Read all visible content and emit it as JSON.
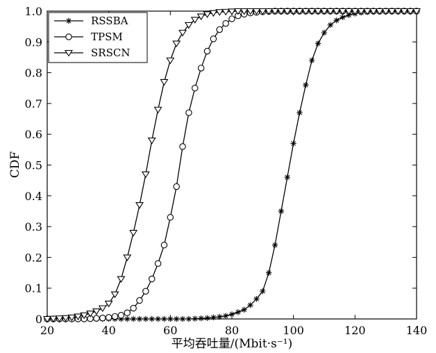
{
  "chart_data": {
    "type": "line",
    "title": "",
    "xlabel": "平均吞吐量/(Mbit·s⁻¹)",
    "ylabel": "CDF",
    "xlim": [
      20,
      140
    ],
    "ylim": [
      0,
      1.0
    ],
    "xticks": [
      "20",
      "40",
      "60",
      "80",
      "100",
      "120",
      "140"
    ],
    "yticks": [
      "0",
      "0.1",
      "0.2",
      "0.3",
      "0.4",
      "0.5",
      "0.6",
      "0.7",
      "0.8",
      "0.9",
      "1.0"
    ],
    "grid": false,
    "legend": "top-left",
    "x": [
      20,
      22,
      24,
      26,
      28,
      30,
      32,
      34,
      36,
      38,
      40,
      42,
      44,
      46,
      48,
      50,
      52,
      54,
      56,
      58,
      60,
      62,
      64,
      66,
      68,
      70,
      72,
      74,
      76,
      78,
      80,
      82,
      84,
      86,
      88,
      90,
      92,
      94,
      96,
      98,
      100,
      102,
      104,
      106,
      108,
      110,
      112,
      114,
      116,
      118,
      120,
      122,
      124,
      126,
      128,
      130,
      132,
      134,
      136,
      138,
      140
    ],
    "series": [
      {
        "name": "RSSBA",
        "marker": "asterisk",
        "values": [
          0,
          0,
          0,
          0,
          0,
          0,
          0,
          0,
          0,
          0,
          0,
          0,
          0,
          0,
          0,
          0,
          0,
          0,
          0,
          0,
          0,
          0,
          0,
          0,
          0.001,
          0.002,
          0.003,
          0.005,
          0.007,
          0.01,
          0.015,
          0.022,
          0.03,
          0.045,
          0.065,
          0.09,
          0.15,
          0.24,
          0.35,
          0.46,
          0.57,
          0.67,
          0.76,
          0.84,
          0.895,
          0.93,
          0.955,
          0.97,
          0.98,
          0.987,
          0.992,
          0.995,
          0.997,
          0.998,
          0.999,
          0.999,
          1.0,
          1.0,
          1.0,
          1.0,
          1.0
        ]
      },
      {
        "name": "TPSM",
        "marker": "circle",
        "values": [
          0,
          0,
          0,
          0,
          0,
          0,
          0,
          0.001,
          0.002,
          0.003,
          0.005,
          0.008,
          0.012,
          0.02,
          0.035,
          0.06,
          0.09,
          0.13,
          0.18,
          0.24,
          0.33,
          0.43,
          0.56,
          0.67,
          0.75,
          0.815,
          0.87,
          0.91,
          0.94,
          0.96,
          0.975,
          0.985,
          0.99,
          0.994,
          0.996,
          0.998,
          0.999,
          1.0,
          1.0,
          1.0,
          1.0,
          1.0,
          1.0,
          1.0,
          1.0,
          1.0,
          1.0,
          1.0,
          1.0,
          1.0,
          1.0,
          1.0,
          1.0,
          1.0,
          1.0,
          1.0,
          1.0,
          1.0,
          1.0,
          1.0,
          1.0
        ]
      },
      {
        "name": "SRSCN",
        "marker": "triangle-down",
        "values": [
          0,
          0.001,
          0.002,
          0.003,
          0.005,
          0.008,
          0.012,
          0.018,
          0.025,
          0.035,
          0.05,
          0.08,
          0.13,
          0.2,
          0.28,
          0.37,
          0.47,
          0.58,
          0.68,
          0.77,
          0.84,
          0.895,
          0.93,
          0.955,
          0.972,
          0.983,
          0.99,
          0.994,
          0.997,
          0.998,
          0.999,
          1.0,
          1.0,
          1.0,
          1.0,
          1.0,
          1.0,
          1.0,
          1.0,
          1.0,
          1.0,
          1.0,
          1.0,
          1.0,
          1.0,
          1.0,
          1.0,
          1.0,
          1.0,
          1.0,
          1.0,
          1.0,
          1.0,
          1.0,
          1.0,
          1.0,
          1.0,
          1.0,
          1.0,
          1.0,
          1.0
        ]
      }
    ]
  }
}
